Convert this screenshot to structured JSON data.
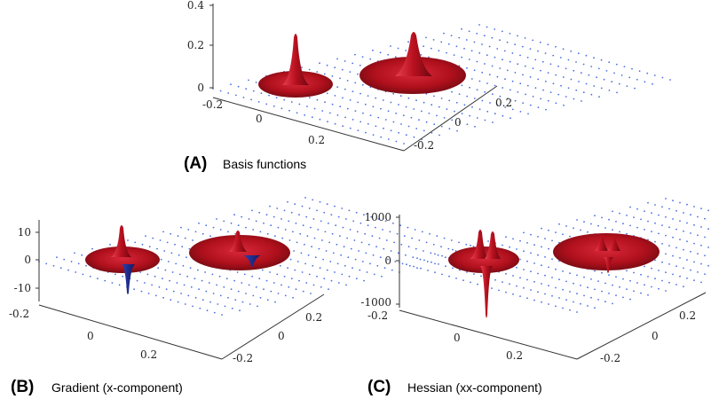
{
  "panels": [
    {
      "id": "A",
      "letter": "(A)",
      "caption": "Basis functions",
      "z_ticks": [
        "0.4",
        "0.2",
        "0"
      ],
      "x_ticks": [
        "-0.2",
        "0",
        "0.2"
      ],
      "y_ticks": [
        "0.2",
        "0",
        "-0.2"
      ],
      "colors": {
        "surface": "#b0101c",
        "dots": "#4a6fe0"
      }
    },
    {
      "id": "B",
      "letter": "(B)",
      "caption": "Gradient (x-component)",
      "z_ticks": [
        "10",
        "0",
        "-10"
      ],
      "x_ticks": [
        "-0.2",
        "0",
        "0.2"
      ],
      "y_ticks": [
        "0.2",
        "0",
        "-0.2"
      ]
    },
    {
      "id": "C",
      "letter": "(C)",
      "caption": "Hessian (xx-component)",
      "z_ticks": [
        "1000",
        "0",
        "-1000"
      ],
      "x_ticks": [
        "-0.2",
        "0",
        "0.2"
      ],
      "y_ticks": [
        "0.2",
        "0",
        "-0.2"
      ]
    }
  ]
}
